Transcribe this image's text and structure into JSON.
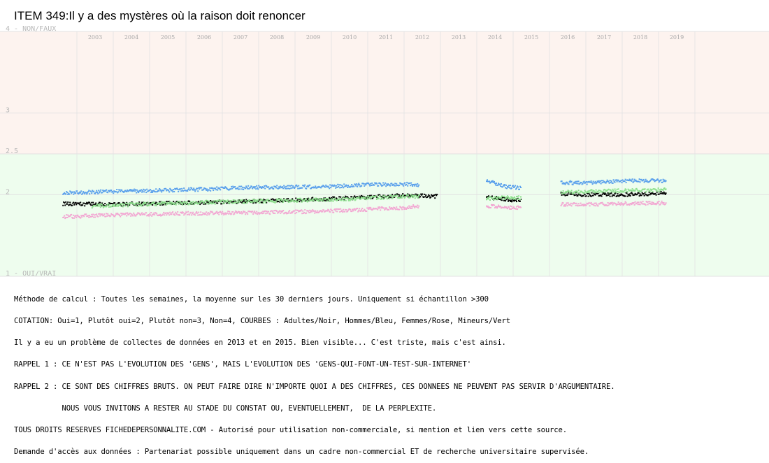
{
  "chart_data": {
    "type": "scatter",
    "title": "ITEM 349:Il y a des mystères où la raison doit renoncer",
    "x_tick_labels": [
      "2003",
      "2004",
      "2005",
      "2006",
      "2007",
      "2008",
      "2009",
      "2010",
      "2011",
      "2012",
      "2013",
      "2014",
      "2015",
      "2016",
      "2017",
      "2018",
      "2019"
    ],
    "y_tick_labels": [
      {
        "value": 4,
        "label": "4 - NON/FAUX"
      },
      {
        "value": 3,
        "label": "3"
      },
      {
        "value": 2.5,
        "label": "2.5"
      },
      {
        "value": 2,
        "label": "2"
      },
      {
        "value": 1,
        "label": "1 - OUI/VRAI"
      }
    ],
    "ylim": [
      1,
      4
    ],
    "xlim": [
      2002.5,
      2019.8
    ],
    "bands": [
      {
        "from": 2.5,
        "to": 4,
        "color": "#fdf3ef"
      },
      {
        "from": 1,
        "to": 2.5,
        "color": "#eefdee"
      }
    ],
    "gap_periods": [
      [
        2013.55,
        2014.2
      ],
      [
        2015.25,
        2016.3
      ]
    ],
    "series": [
      {
        "name": "Adultes",
        "color": "#000000",
        "segments": [
          {
            "x": [
              2002.6,
              2004,
              2006,
              2008,
              2010,
              2011,
              2012,
              2012.9
            ],
            "y": [
              1.89,
              1.88,
              1.9,
              1.92,
              1.95,
              1.97,
              1.99,
              1.98
            ]
          },
          {
            "x": [
              2014.25,
              2014.8,
              2015.2
            ],
            "y": [
              1.97,
              1.94,
              1.93
            ]
          },
          {
            "x": [
              2016.3,
              2017,
              2018,
              2019.2
            ],
            "y": [
              2.01,
              2.0,
              2.0,
              2.02
            ]
          }
        ]
      },
      {
        "name": "Hommes",
        "color": "#5aa0ec",
        "segments": [
          {
            "x": [
              2002.6,
              2004,
              2006,
              2008,
              2010,
              2011,
              2012,
              2012.4
            ],
            "y": [
              2.02,
              2.04,
              2.06,
              2.09,
              2.1,
              2.12,
              2.13,
              2.12
            ]
          },
          {
            "x": [
              2014.25,
              2014.8,
              2015.2
            ],
            "y": [
              2.17,
              2.1,
              2.08
            ]
          },
          {
            "x": [
              2016.3,
              2017,
              2018,
              2019.2
            ],
            "y": [
              2.15,
              2.14,
              2.17,
              2.17
            ]
          }
        ]
      },
      {
        "name": "Femmes",
        "color": "#f2a6d2",
        "segments": [
          {
            "x": [
              2002.6,
              2004,
              2006,
              2008,
              2010,
              2011,
              2012,
              2012.4
            ],
            "y": [
              1.73,
              1.75,
              1.77,
              1.78,
              1.8,
              1.82,
              1.84,
              1.86
            ]
          },
          {
            "x": [
              2014.25,
              2014.8,
              2015.2
            ],
            "y": [
              1.86,
              1.84,
              1.84
            ]
          },
          {
            "x": [
              2016.3,
              2017,
              2018,
              2019.2
            ],
            "y": [
              1.88,
              1.88,
              1.89,
              1.9
            ]
          }
        ]
      },
      {
        "name": "Mineurs",
        "color": "#8ee08e",
        "segments": [
          {
            "x": [
              2003.4,
              2004,
              2006,
              2008,
              2010,
              2011,
              2012,
              2012.4
            ],
            "y": [
              1.86,
              1.87,
              1.9,
              1.92,
              1.94,
              1.96,
              1.98,
              1.98
            ]
          },
          {
            "x": [
              2014.25,
              2014.8,
              2015.2
            ],
            "y": [
              1.95,
              1.97,
              1.96
            ]
          },
          {
            "x": [
              2016.3,
              2017,
              2018,
              2019.2
            ],
            "y": [
              2.03,
              2.04,
              2.05,
              2.06
            ]
          }
        ]
      }
    ]
  },
  "notes": [
    "Méthode de calcul : Toutes les semaines, la moyenne sur les 30 derniers jours. Uniquement si échantillon >300",
    "COTATION: Oui=1, Plutôt oui=2, Plutôt non=3, Non=4, COURBES : Adultes/Noir, Hommes/Bleu, Femmes/Rose, Mineurs/Vert",
    "Il y a eu un problème de collectes de données en 2013 et en 2015. Bien visible... C'est triste, mais c'est ainsi.",
    "RAPPEL 1 : CE N'EST PAS L'EVOLUTION DES 'GENS', MAIS L'EVOLUTION DES 'GENS-QUI-FONT-UN-TEST-SUR-INTERNET'",
    "RAPPEL 2 : CE SONT DES CHIFFRES BRUTS. ON PEUT FAIRE DIRE N'IMPORTE QUOI A DES CHIFFRES, CES DONNEES NE PEUVENT PAS SERVIR D'ARGUMENTAIRE.",
    "           NOUS VOUS INVITONS A RESTER AU STADE DU CONSTAT OU, EVENTUELLEMENT,  DE LA PERPLEXITE.",
    "TOUS DROITS RESERVES FICHEDEPERSONNALITE.COM - Autorisé pour utilisation non-commerciale, si mention et lien vers cette source.",
    "Demande d'accès aux données : Partenariat possible uniquement dans un cadre non-commercial ET de recherche universitaire supervisée."
  ]
}
